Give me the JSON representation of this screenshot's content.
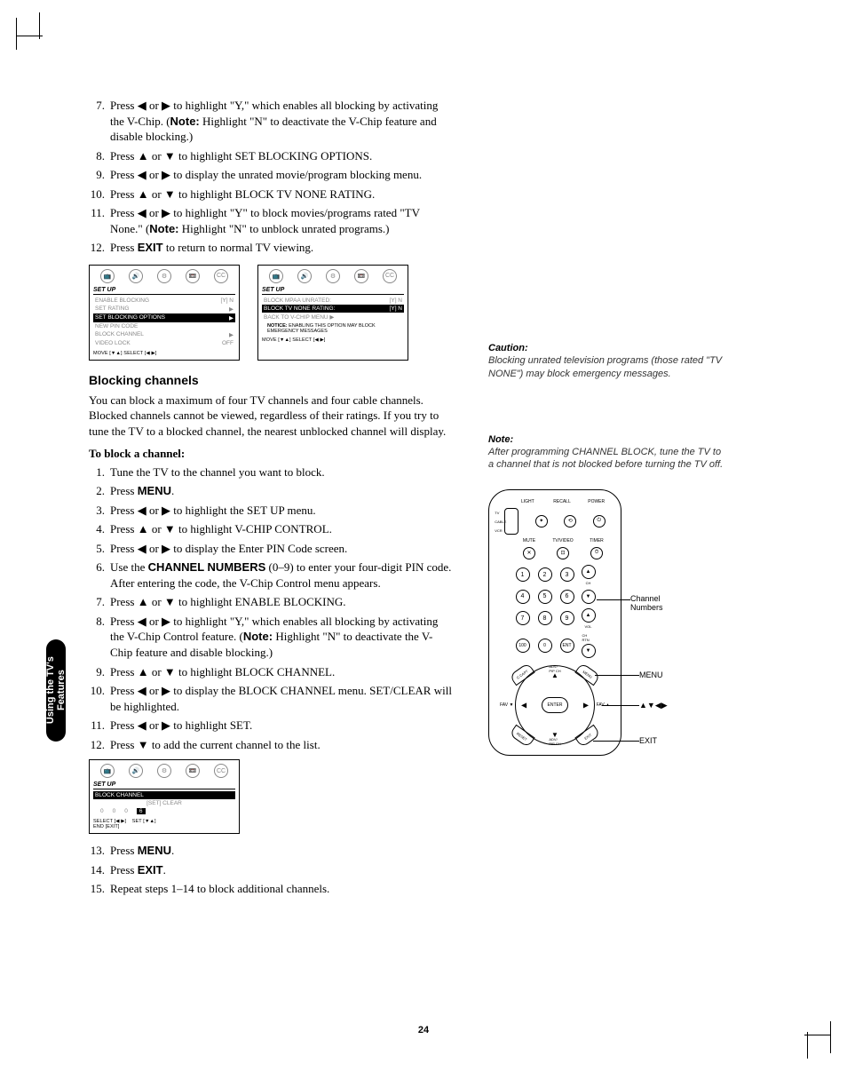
{
  "page_number": "24",
  "side_tab": "Using the TV's\nFeatures",
  "steps_top": [
    {
      "n": "7.",
      "t": "Press ◀ or ▶ to highlight \"Y,\" which enables all blocking by activating the V-Chip. (",
      "b": "Note:",
      "t2": "  Highlight \"N\" to deactivate the V-Chip feature and disable blocking.)"
    },
    {
      "n": "8.",
      "t": "Press ▲ or ▼ to highlight SET BLOCKING OPTIONS."
    },
    {
      "n": "9.",
      "t": "Press ◀ or ▶ to display the unrated movie/program blocking menu."
    },
    {
      "n": "10.",
      "t": "Press ▲ or ▼ to highlight BLOCK TV NONE RATING."
    },
    {
      "n": "11.",
      "t": "Press ◀ or ▶ to highlight \"Y\" to block movies/programs rated \"TV None.\" (",
      "b": "Note:",
      "t2": " Highlight \"N\" to unblock unrated programs.)"
    },
    {
      "n": "12.",
      "t": "Press ",
      "b": "EXIT",
      "t2": " to return to normal TV viewing."
    }
  ],
  "osd_icons": [
    "📺",
    "🔊",
    "⚙",
    "📼",
    "CC"
  ],
  "osd1": {
    "title": "SET UP",
    "lines": [
      {
        "l": "ENABLE BLOCKING",
        "r": "[Y] N"
      },
      {
        "l": "SET RATING",
        "r": "▶"
      }
    ],
    "hl": {
      "l": "SET BLOCKING OPTIONS",
      "r": "▶"
    },
    "lines2": [
      {
        "l": "NEW PIN CODE",
        "r": ""
      },
      {
        "l": "BLOCK CHANNEL",
        "r": "▶"
      },
      {
        "l": "VIDEO LOCK",
        "r": "OFF"
      }
    ],
    "foot": "MOVE [▼▲]    SELECT [◀ ▶]"
  },
  "osd2": {
    "title": "SET UP",
    "lines": [
      {
        "l": "BLOCK MPAA UNRATED:",
        "r": "[Y] N"
      }
    ],
    "hl": {
      "l": "BLOCK TV NONE RATING:",
      "r": "[Y] N"
    },
    "lines2": [
      {
        "l": "BACK TO V-CHIP MENU ▶",
        "r": ""
      }
    ],
    "notice_h": "NOTICE:",
    "notice": "ENABLING THIS OPTION MAY BLOCK EMERGENCY MESSAGES",
    "foot": "MOVE [▼▲]    SELECT [◀ ▶]"
  },
  "section_heading": "Blocking channels",
  "section_body": "You can block a maximum of four TV channels and four cable channels. Blocked channels cannot be viewed, regardless of their ratings. If you try to tune the TV to a blocked channel, the nearest unblocked channel will display.",
  "subhead": "To block a channel:",
  "steps_mid": [
    {
      "n": "1.",
      "t": "Tune the TV to the channel you want to block."
    },
    {
      "n": "2.",
      "t": "Press ",
      "b": "MENU",
      "t2": "."
    },
    {
      "n": "3.",
      "t": "Press ◀ or ▶ to highlight the SET UP menu."
    },
    {
      "n": "4.",
      "t": "Press ▲ or ▼ to highlight V-CHIP CONTROL."
    },
    {
      "n": "5.",
      "t": "Press ◀ or ▶ to display the Enter PIN Code screen."
    },
    {
      "n": "6.",
      "t": "Use the ",
      "b": "CHANNEL NUMBERS",
      "t2": " (0–9) to enter your four-digit PIN code. After entering the code, the V-Chip Control menu appears."
    },
    {
      "n": "7.",
      "t": "Press ▲ or ▼ to highlight ENABLE BLOCKING."
    },
    {
      "n": "8.",
      "t": "Press ◀ or ▶ to highlight \"Y,\" which enables all blocking by activating the V-Chip Control feature. (",
      "b": "Note:",
      "t2": "  Highlight \"N\" to deactivate the V-Chip feature and disable blocking.)"
    },
    {
      "n": "9.",
      "t": "Press ▲ or ▼ to highlight BLOCK CHANNEL."
    },
    {
      "n": "10.",
      "t": "Press ◀ or ▶ to display the BLOCK CHANNEL menu. SET/CLEAR will be highlighted."
    },
    {
      "n": "11.",
      "t": "Press ◀ or ▶ to highlight SET."
    },
    {
      "n": "12.",
      "t": "Press ▼ to add the current channel to the list."
    }
  ],
  "osd3": {
    "title": "SET UP",
    "hl": {
      "l": "BLOCK CHANNEL",
      "r": ""
    },
    "setclear": "[SET]  CLEAR",
    "slots": [
      "0",
      "0",
      "0",
      "6"
    ],
    "foot": "SELECT [◀ ▶]    SET [▼▲]\nEND [EXIT]"
  },
  "steps_bot": [
    {
      "n": "13.",
      "t": "Press ",
      "b": "MENU",
      "t2": "."
    },
    {
      "n": "14.",
      "t": "Press ",
      "b": "EXIT",
      "t2": "."
    },
    {
      "n": "15.",
      "t": "Repeat steps 1–14 to block additional channels."
    }
  ],
  "caution": {
    "h": "Caution:",
    "b": "Blocking unrated television programs (those rated \"TV NONE\") may block emergency messages."
  },
  "note": {
    "h": "Note:",
    "b": "After programming CHANNEL BLOCK, tune the TV to a channel that is not blocked before turning the TV off."
  },
  "remote": {
    "top_labels": [
      "LIGHT",
      "RECALL",
      "POWER"
    ],
    "row2_labels": [
      "MUTE",
      "TV/VIDEO",
      "TIMER"
    ],
    "switch_labels": [
      "TV",
      "CABLE",
      "VCR"
    ],
    "numbers": [
      "1",
      "2",
      "3",
      "4",
      "5",
      "6",
      "7",
      "8",
      "9",
      "100",
      "0",
      "ENT"
    ],
    "ch": "CH",
    "vol": "VOL",
    "chrtn": "CH RTN",
    "dpad": {
      "center": "ENTER",
      "adv": "ADV/\nPIP CH",
      "ccapt": "C.CAPT",
      "menu": "MENU",
      "reset": "RESET",
      "exit": "EXIT"
    },
    "fav_l": "FAV ▼",
    "fav_r": "FAV ▲"
  },
  "callouts": {
    "channel_numbers": "Channel\nNumbers",
    "menu": "MENU",
    "arrows": "▲▼◀▶",
    "exit": "EXIT"
  }
}
